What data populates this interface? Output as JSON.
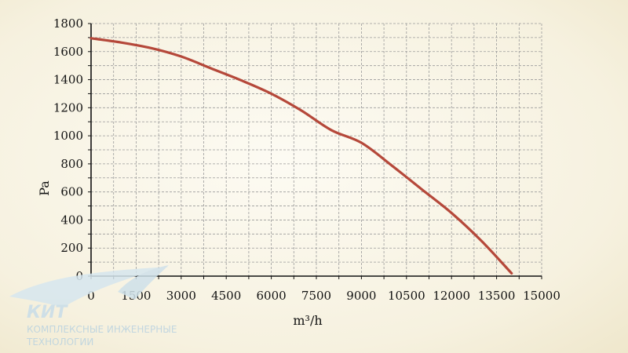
{
  "chart_data": {
    "type": "line",
    "xlabel": "m³/h",
    "ylabel": "Pa",
    "xlim": [
      0,
      15000
    ],
    "ylim": [
      0,
      1800
    ],
    "x_ticks": [
      0,
      1500,
      3000,
      4500,
      6000,
      7500,
      9000,
      10500,
      12000,
      13500,
      15000
    ],
    "y_ticks": [
      0,
      200,
      400,
      600,
      800,
      1000,
      1200,
      1400,
      1600,
      1800
    ],
    "x_minor_step": 750,
    "y_minor_step": 100,
    "grid": true,
    "legend": "none",
    "series": [
      {
        "color": "#b5483a",
        "points": [
          [
            0,
            1695
          ],
          [
            1000,
            1665
          ],
          [
            2000,
            1625
          ],
          [
            3000,
            1565
          ],
          [
            4000,
            1480
          ],
          [
            5000,
            1395
          ],
          [
            6000,
            1300
          ],
          [
            7000,
            1180
          ],
          [
            8000,
            1040
          ],
          [
            9000,
            950
          ],
          [
            10000,
            790
          ],
          [
            11000,
            620
          ],
          [
            12000,
            450
          ],
          [
            13000,
            250
          ],
          [
            14000,
            20
          ]
        ]
      }
    ]
  },
  "logo": {
    "word": "КИТ",
    "line1": "КОМПЛЕКСНЫЕ ИНЖЕНЕРНЫЕ",
    "line2": "ТЕХНОЛОГИИ"
  }
}
